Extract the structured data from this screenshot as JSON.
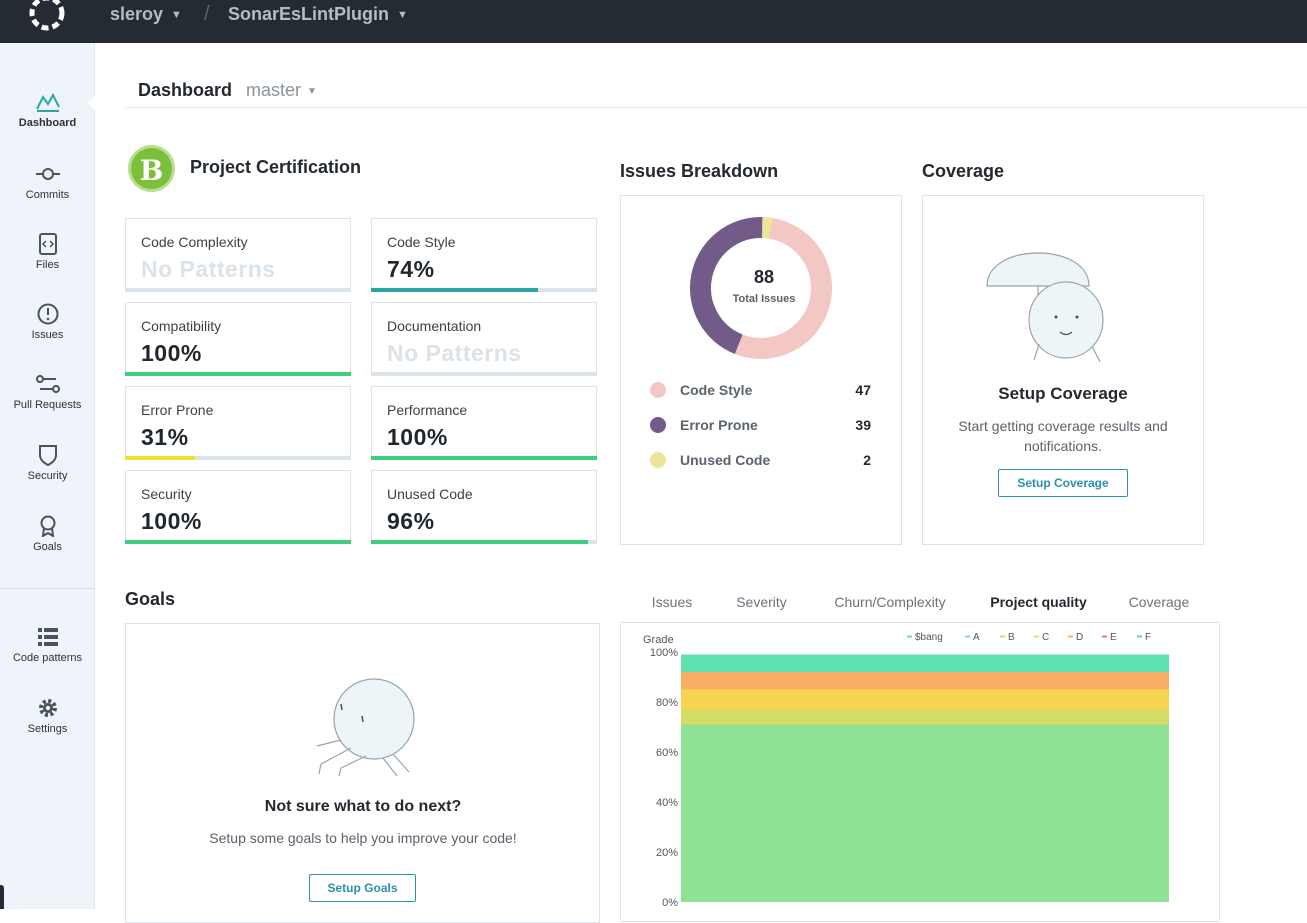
{
  "topbar": {
    "org": "sleroy",
    "project": "SonarEsLintPlugin",
    "separator": "/"
  },
  "sidebar": {
    "items": [
      {
        "label": "Dashboard",
        "icon": "chart-line-icon",
        "active": true
      },
      {
        "label": "Commits",
        "icon": "commit-icon"
      },
      {
        "label": "Files",
        "icon": "file-code-icon"
      },
      {
        "label": "Issues",
        "icon": "alert-circle-icon"
      },
      {
        "label": "Pull Requests",
        "icon": "pull-request-icon"
      },
      {
        "label": "Security",
        "icon": "shield-icon"
      },
      {
        "label": "Goals",
        "icon": "award-icon"
      }
    ],
    "bottom_items": [
      {
        "label": "Code patterns",
        "icon": "list-icon"
      },
      {
        "label": "Settings",
        "icon": "gear-icon"
      }
    ]
  },
  "header": {
    "title": "Dashboard",
    "branch": "master"
  },
  "certification": {
    "grade": "B",
    "title": "Project Certification",
    "cards": [
      {
        "name": "Code Complexity",
        "value": "No Patterns",
        "progress": 0,
        "color": "#dbe3ea"
      },
      {
        "name": "Code Style",
        "value": "74%",
        "progress": 0.74,
        "color": "#2aa6a6"
      },
      {
        "name": "Compatibility",
        "value": "100%",
        "progress": 1.0,
        "color": "#3ecf7e"
      },
      {
        "name": "Documentation",
        "value": "No Patterns",
        "progress": 0,
        "color": "#dbe3ea"
      },
      {
        "name": "Error Prone",
        "value": "31%",
        "progress": 0.31,
        "color": "#f0e02e"
      },
      {
        "name": "Performance",
        "value": "100%",
        "progress": 1.0,
        "color": "#3ecf7e"
      },
      {
        "name": "Security",
        "value": "100%",
        "progress": 1.0,
        "color": "#3ecf7e"
      },
      {
        "name": "Unused Code",
        "value": "96%",
        "progress": 0.96,
        "color": "#3ecf7e"
      }
    ]
  },
  "issues": {
    "title": "Issues Breakdown",
    "total": "88",
    "total_label": "Total Issues",
    "categories": [
      {
        "name": "Code Style",
        "count": 47,
        "color": "#f3c7c4"
      },
      {
        "name": "Error Prone",
        "count": 39,
        "color": "#725a89"
      },
      {
        "name": "Unused Code",
        "count": 2,
        "color": "#ece496"
      }
    ]
  },
  "coverage": {
    "title": "Coverage",
    "card_title": "Setup Coverage",
    "description": "Start getting coverage results and notifications.",
    "button": "Setup Coverage"
  },
  "goals": {
    "title": "Goals",
    "card_title": "Not sure what to do next?",
    "description": "Setup some goals to help you improve your code!",
    "button": "Setup Goals"
  },
  "tabs": [
    "Issues",
    "Severity",
    "Churn/Complexity",
    "Project quality",
    "Coverage"
  ],
  "active_tab": "Project quality",
  "chart_data": {
    "type": "area",
    "ylabel": "Grade",
    "y_ticks": [
      "100%",
      "80%",
      "60%",
      "40%",
      "20%",
      "0%"
    ],
    "ylim": [
      0,
      100
    ],
    "legend_position": "top-right",
    "series": [
      {
        "name": "A",
        "value": 71,
        "color": "#8fe196"
      },
      {
        "name": "B",
        "value": 6,
        "color": "#d4dc64"
      },
      {
        "name": "C",
        "value": 8,
        "color": "#f6d452"
      },
      {
        "name": "D",
        "value": 7,
        "color": "#f9ae65"
      },
      {
        "name": "E",
        "value": 0,
        "color": "#f07b6b"
      },
      {
        "name": "F",
        "value": 0,
        "color": "#5bd6ae"
      },
      {
        "name": "$bang",
        "value": 7,
        "color": "#5de2b0"
      }
    ],
    "legend_order": [
      "$bang",
      "A",
      "B",
      "C",
      "D",
      "E",
      "F"
    ]
  }
}
